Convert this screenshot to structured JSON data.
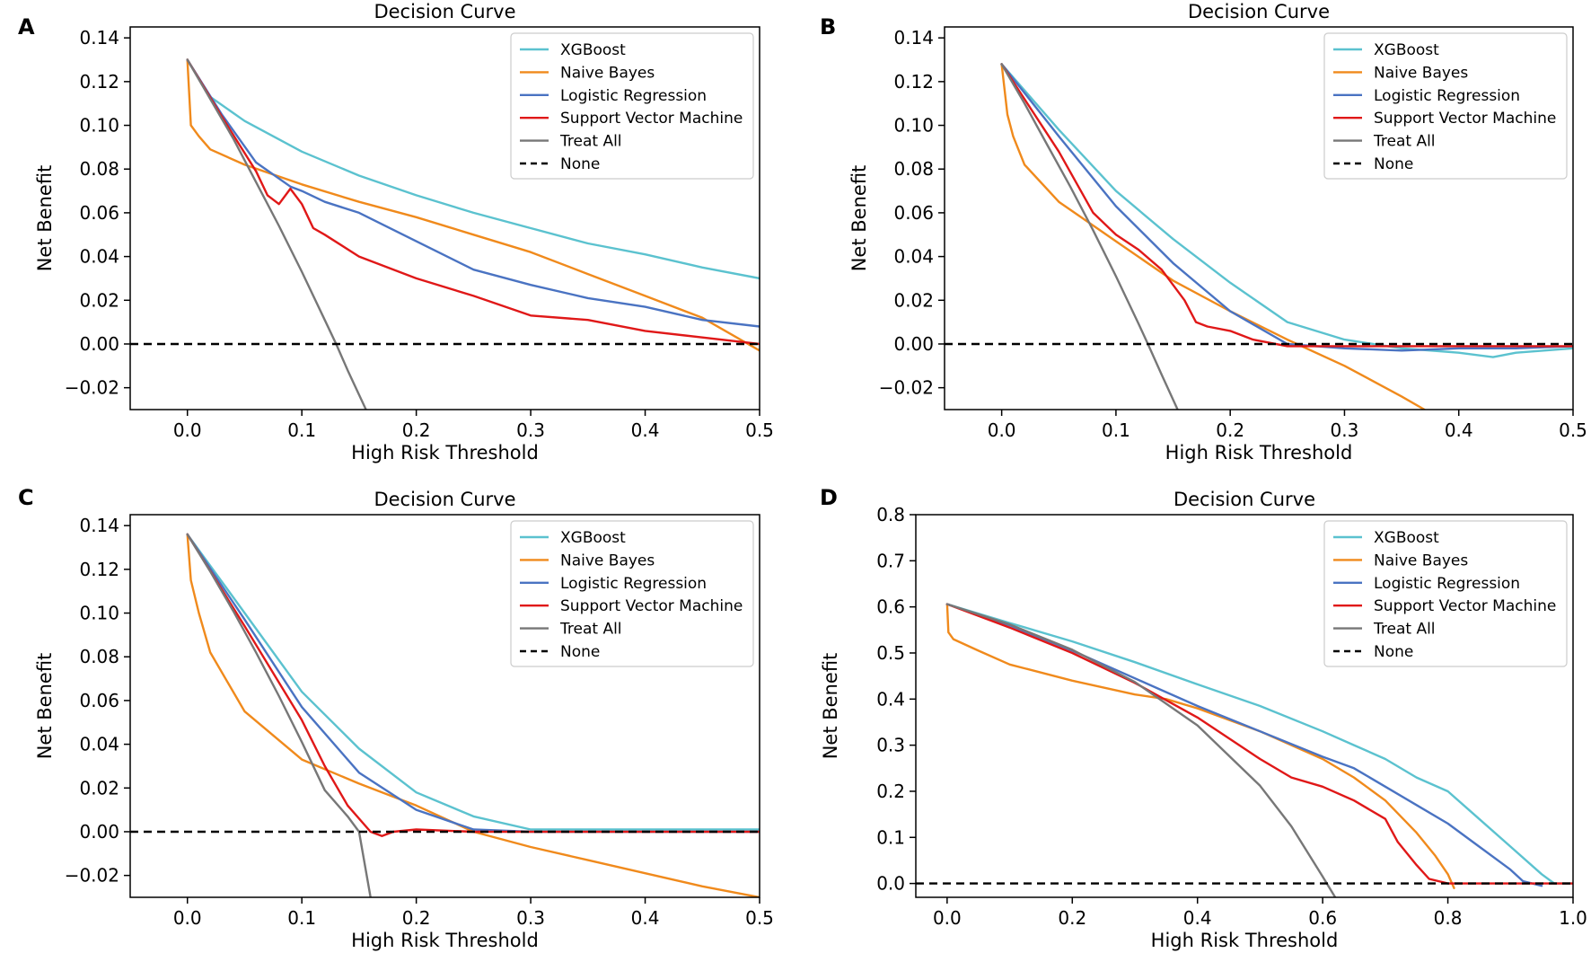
{
  "figure": {
    "panel_letters": [
      "A",
      "B",
      "C",
      "D"
    ],
    "colors": {
      "xgboost": "#5bc2cf",
      "naive_bayes": "#f08a1c",
      "logistic_regression": "#4a73c2",
      "svm": "#e01818",
      "treat_all": "#777777",
      "none": "#000000"
    }
  },
  "chart_data": [
    {
      "type": "line",
      "panel": "A",
      "title": "Decision Curve",
      "xlabel": "High Risk Threshold",
      "ylabel": "Net Benefit",
      "xlim": [
        -0.05,
        0.5
      ],
      "ylim": [
        -0.03,
        0.145
      ],
      "xticks": [
        0.0,
        0.1,
        0.2,
        0.3,
        0.4,
        0.5
      ],
      "xtick_labels": [
        "0.0",
        "0.1",
        "0.2",
        "0.3",
        "0.4",
        "0.5"
      ],
      "yticks": [
        -0.02,
        0.0,
        0.02,
        0.04,
        0.06,
        0.08,
        0.1,
        0.12,
        0.14
      ],
      "ytick_labels": [
        "−0.02",
        "0.00",
        "0.02",
        "0.04",
        "0.06",
        "0.08",
        "0.10",
        "0.12",
        "0.14"
      ],
      "legend_position": "top-right",
      "series": [
        {
          "name": "XGBoost",
          "key": "xgboost",
          "x": [
            0,
            0.02,
            0.05,
            0.1,
            0.15,
            0.2,
            0.25,
            0.3,
            0.35,
            0.4,
            0.45,
            0.5
          ],
          "y": [
            0.13,
            0.113,
            0.102,
            0.088,
            0.077,
            0.068,
            0.06,
            0.053,
            0.046,
            0.041,
            0.035,
            0.03
          ]
        },
        {
          "name": "Naive Bayes",
          "key": "naive_bayes",
          "x": [
            0,
            0.003,
            0.01,
            0.02,
            0.05,
            0.1,
            0.15,
            0.2,
            0.25,
            0.3,
            0.35,
            0.4,
            0.45,
            0.5
          ],
          "y": [
            0.13,
            0.1,
            0.095,
            0.089,
            0.082,
            0.073,
            0.065,
            0.058,
            0.05,
            0.042,
            0.032,
            0.022,
            0.012,
            -0.003
          ]
        },
        {
          "name": "Logistic Regression",
          "key": "logistic_regression",
          "x": [
            0,
            0.03,
            0.06,
            0.09,
            0.1,
            0.12,
            0.15,
            0.2,
            0.25,
            0.3,
            0.35,
            0.4,
            0.45,
            0.5
          ],
          "y": [
            0.13,
            0.105,
            0.083,
            0.072,
            0.07,
            0.065,
            0.06,
            0.047,
            0.034,
            0.027,
            0.021,
            0.017,
            0.011,
            0.008
          ]
        },
        {
          "name": "Support Vector Machine",
          "key": "svm",
          "x": [
            0,
            0.03,
            0.06,
            0.07,
            0.08,
            0.09,
            0.1,
            0.11,
            0.12,
            0.15,
            0.2,
            0.25,
            0.3,
            0.35,
            0.4,
            0.45,
            0.5
          ],
          "y": [
            0.13,
            0.104,
            0.079,
            0.068,
            0.064,
            0.071,
            0.064,
            0.053,
            0.05,
            0.04,
            0.03,
            0.022,
            0.013,
            0.011,
            0.006,
            0.003,
            0.0
          ]
        },
        {
          "name": "Treat All",
          "key": "treat_all",
          "x": [
            0,
            0.02,
            0.04,
            0.06,
            0.08,
            0.1,
            0.12,
            0.13,
            0.14,
            0.156
          ],
          "y": [
            0.13,
            0.112,
            0.094,
            0.074,
            0.054,
            0.033,
            0.011,
            0.0,
            -0.012,
            -0.03
          ]
        },
        {
          "name": "None",
          "key": "none",
          "dashed": true,
          "x": [
            -0.05,
            0.5
          ],
          "y": [
            0,
            0
          ]
        }
      ]
    },
    {
      "type": "line",
      "panel": "B",
      "title": "Decision Curve",
      "xlabel": "High Risk Threshold",
      "ylabel": "Net Benefit",
      "xlim": [
        -0.05,
        0.5
      ],
      "ylim": [
        -0.03,
        0.145
      ],
      "xticks": [
        0.0,
        0.1,
        0.2,
        0.3,
        0.4,
        0.5
      ],
      "xtick_labels": [
        "0.0",
        "0.1",
        "0.2",
        "0.3",
        "0.4",
        "0.5"
      ],
      "yticks": [
        -0.02,
        0.0,
        0.02,
        0.04,
        0.06,
        0.08,
        0.1,
        0.12,
        0.14
      ],
      "ytick_labels": [
        "−0.02",
        "0.00",
        "0.02",
        "0.04",
        "0.06",
        "0.08",
        "0.10",
        "0.12",
        "0.14"
      ],
      "legend_position": "top-right",
      "series": [
        {
          "name": "XGBoost",
          "key": "xgboost",
          "x": [
            0,
            0.05,
            0.1,
            0.15,
            0.2,
            0.25,
            0.3,
            0.35,
            0.4,
            0.43,
            0.45,
            0.5
          ],
          "y": [
            0.128,
            0.098,
            0.07,
            0.048,
            0.028,
            0.01,
            0.002,
            -0.002,
            -0.004,
            -0.006,
            -0.004,
            -0.002
          ]
        },
        {
          "name": "Naive Bayes",
          "key": "naive_bayes",
          "x": [
            0,
            0.005,
            0.01,
            0.02,
            0.05,
            0.1,
            0.15,
            0.2,
            0.25,
            0.3,
            0.35,
            0.37
          ],
          "y": [
            0.128,
            0.105,
            0.095,
            0.082,
            0.065,
            0.047,
            0.029,
            0.015,
            0.002,
            -0.01,
            -0.024,
            -0.03
          ]
        },
        {
          "name": "Logistic Regression",
          "key": "logistic_regression",
          "x": [
            0,
            0.05,
            0.1,
            0.15,
            0.2,
            0.25,
            0.3,
            0.35,
            0.4,
            0.45,
            0.5
          ],
          "y": [
            0.128,
            0.095,
            0.063,
            0.037,
            0.015,
            0.0,
            -0.002,
            -0.003,
            -0.002,
            -0.002,
            -0.001
          ]
        },
        {
          "name": "Support Vector Machine",
          "key": "svm",
          "x": [
            0,
            0.05,
            0.08,
            0.1,
            0.12,
            0.14,
            0.16,
            0.17,
            0.18,
            0.2,
            0.22,
            0.25,
            0.3,
            0.35,
            0.4,
            0.45,
            0.5
          ],
          "y": [
            0.128,
            0.088,
            0.06,
            0.05,
            0.043,
            0.034,
            0.02,
            0.01,
            0.008,
            0.006,
            0.002,
            -0.001,
            -0.001,
            -0.001,
            -0.001,
            -0.001,
            -0.001
          ]
        },
        {
          "name": "Treat All",
          "key": "treat_all",
          "x": [
            0,
            0.02,
            0.04,
            0.06,
            0.08,
            0.1,
            0.12,
            0.128,
            0.14,
            0.154
          ],
          "y": [
            0.128,
            0.11,
            0.091,
            0.072,
            0.052,
            0.031,
            0.009,
            0.0,
            -0.014,
            -0.03
          ]
        },
        {
          "name": "None",
          "key": "none",
          "dashed": true,
          "x": [
            -0.05,
            0.5
          ],
          "y": [
            0,
            0
          ]
        }
      ]
    },
    {
      "type": "line",
      "panel": "C",
      "title": "Decision Curve",
      "xlabel": "High Risk Threshold",
      "ylabel": "Net Benefit",
      "xlim": [
        -0.05,
        0.5
      ],
      "ylim": [
        -0.03,
        0.145
      ],
      "xticks": [
        0.0,
        0.1,
        0.2,
        0.3,
        0.4,
        0.5
      ],
      "xtick_labels": [
        "0.0",
        "0.1",
        "0.2",
        "0.3",
        "0.4",
        "0.5"
      ],
      "yticks": [
        -0.02,
        0.0,
        0.02,
        0.04,
        0.06,
        0.08,
        0.1,
        0.12,
        0.14
      ],
      "ytick_labels": [
        "−0.02",
        "0.00",
        "0.02",
        "0.04",
        "0.06",
        "0.08",
        "0.10",
        "0.12",
        "0.14"
      ],
      "legend_position": "top-right",
      "series": [
        {
          "name": "XGBoost",
          "key": "xgboost",
          "x": [
            0,
            0.05,
            0.1,
            0.15,
            0.2,
            0.25,
            0.3,
            0.35,
            0.4,
            0.45,
            0.5
          ],
          "y": [
            0.136,
            0.1,
            0.064,
            0.038,
            0.018,
            0.007,
            0.001,
            0.001,
            0.001,
            0.001,
            0.001
          ]
        },
        {
          "name": "Naive Bayes",
          "key": "naive_bayes",
          "x": [
            0,
            0.003,
            0.01,
            0.02,
            0.05,
            0.1,
            0.15,
            0.2,
            0.25,
            0.3,
            0.35,
            0.4,
            0.45,
            0.5
          ],
          "y": [
            0.136,
            0.115,
            0.1,
            0.082,
            0.055,
            0.033,
            0.022,
            0.012,
            0.0,
            -0.007,
            -0.013,
            -0.019,
            -0.025,
            -0.03
          ]
        },
        {
          "name": "Logistic Regression",
          "key": "logistic_regression",
          "x": [
            0,
            0.05,
            0.1,
            0.15,
            0.2,
            0.25,
            0.3,
            0.35,
            0.4,
            0.45,
            0.5
          ],
          "y": [
            0.136,
            0.097,
            0.057,
            0.027,
            0.01,
            0.001,
            0.0,
            0.0,
            0.0,
            0.0,
            0.0
          ]
        },
        {
          "name": "Support Vector Machine",
          "key": "svm",
          "x": [
            0,
            0.05,
            0.1,
            0.12,
            0.14,
            0.16,
            0.17,
            0.18,
            0.2,
            0.25,
            0.3,
            0.35,
            0.4,
            0.45,
            0.5
          ],
          "y": [
            0.136,
            0.094,
            0.051,
            0.03,
            0.012,
            0.0,
            -0.002,
            0.0,
            0.001,
            0.0,
            0.0,
            0.0,
            0.0,
            0.0,
            0.0
          ]
        },
        {
          "name": "Treat All",
          "key": "treat_all",
          "x": [
            0,
            0.02,
            0.04,
            0.06,
            0.08,
            0.1,
            0.12,
            0.14,
            0.15,
            0.16
          ],
          "y": [
            0.136,
            0.119,
            0.101,
            0.082,
            0.062,
            0.041,
            0.019,
            0.007,
            0.0,
            -0.03
          ]
        },
        {
          "name": "None",
          "key": "none",
          "dashed": true,
          "x": [
            -0.05,
            0.5
          ],
          "y": [
            0,
            0
          ]
        }
      ]
    },
    {
      "type": "line",
      "panel": "D",
      "title": "Decision Curve",
      "xlabel": "High Risk Threshold",
      "ylabel": "Net Benefit",
      "xlim": [
        -0.05,
        1.0
      ],
      "ylim": [
        -0.03,
        0.8
      ],
      "xticks": [
        0.0,
        0.2,
        0.4,
        0.6,
        0.8,
        1.0
      ],
      "xtick_labels": [
        "0.0",
        "0.2",
        "0.4",
        "0.6",
        "0.8",
        "1.0"
      ],
      "yticks": [
        0.0,
        0.1,
        0.2,
        0.3,
        0.4,
        0.5,
        0.6,
        0.7,
        0.8
      ],
      "ytick_labels": [
        "0.0",
        "0.1",
        "0.2",
        "0.3",
        "0.4",
        "0.5",
        "0.6",
        "0.7",
        "0.8"
      ],
      "legend_position": "top-right",
      "series": [
        {
          "name": "XGBoost",
          "key": "xgboost",
          "x": [
            0,
            0.1,
            0.2,
            0.3,
            0.4,
            0.5,
            0.6,
            0.65,
            0.7,
            0.75,
            0.8,
            0.85,
            0.9,
            0.95,
            0.97,
            1.0
          ],
          "y": [
            0.606,
            0.565,
            0.525,
            0.48,
            0.432,
            0.385,
            0.33,
            0.3,
            0.27,
            0.23,
            0.2,
            0.14,
            0.08,
            0.02,
            0.0,
            0.0
          ]
        },
        {
          "name": "Naive Bayes",
          "key": "naive_bayes",
          "x": [
            0,
            0.002,
            0.01,
            0.05,
            0.1,
            0.2,
            0.3,
            0.35,
            0.4,
            0.5,
            0.6,
            0.65,
            0.7,
            0.75,
            0.78,
            0.8,
            0.81
          ],
          "y": [
            0.606,
            0.545,
            0.53,
            0.505,
            0.475,
            0.44,
            0.41,
            0.4,
            0.38,
            0.33,
            0.27,
            0.23,
            0.18,
            0.11,
            0.06,
            0.02,
            -0.01
          ]
        },
        {
          "name": "Logistic Regression",
          "key": "logistic_regression",
          "x": [
            0,
            0.1,
            0.2,
            0.3,
            0.4,
            0.5,
            0.6,
            0.65,
            0.7,
            0.75,
            0.8,
            0.85,
            0.9,
            0.92,
            0.95
          ],
          "y": [
            0.606,
            0.56,
            0.505,
            0.445,
            0.385,
            0.33,
            0.275,
            0.25,
            0.21,
            0.17,
            0.13,
            0.08,
            0.03,
            0.005,
            -0.005
          ]
        },
        {
          "name": "Support Vector Machine",
          "key": "svm",
          "x": [
            0,
            0.1,
            0.2,
            0.3,
            0.4,
            0.5,
            0.55,
            0.6,
            0.65,
            0.7,
            0.72,
            0.75,
            0.77,
            0.8,
            0.85,
            0.9,
            1.0
          ],
          "y": [
            0.606,
            0.555,
            0.5,
            0.435,
            0.36,
            0.27,
            0.23,
            0.21,
            0.18,
            0.14,
            0.09,
            0.04,
            0.01,
            0.0,
            0.0,
            0.0,
            0.0
          ]
        },
        {
          "name": "Treat All",
          "key": "treat_all",
          "x": [
            0,
            0.1,
            0.2,
            0.3,
            0.4,
            0.5,
            0.55,
            0.6,
            0.62
          ],
          "y": [
            0.606,
            0.562,
            0.507,
            0.437,
            0.343,
            0.212,
            0.124,
            0.015,
            -0.03
          ]
        },
        {
          "name": "None",
          "key": "none",
          "dashed": true,
          "x": [
            -0.05,
            1.0
          ],
          "y": [
            0,
            0
          ]
        }
      ]
    }
  ]
}
